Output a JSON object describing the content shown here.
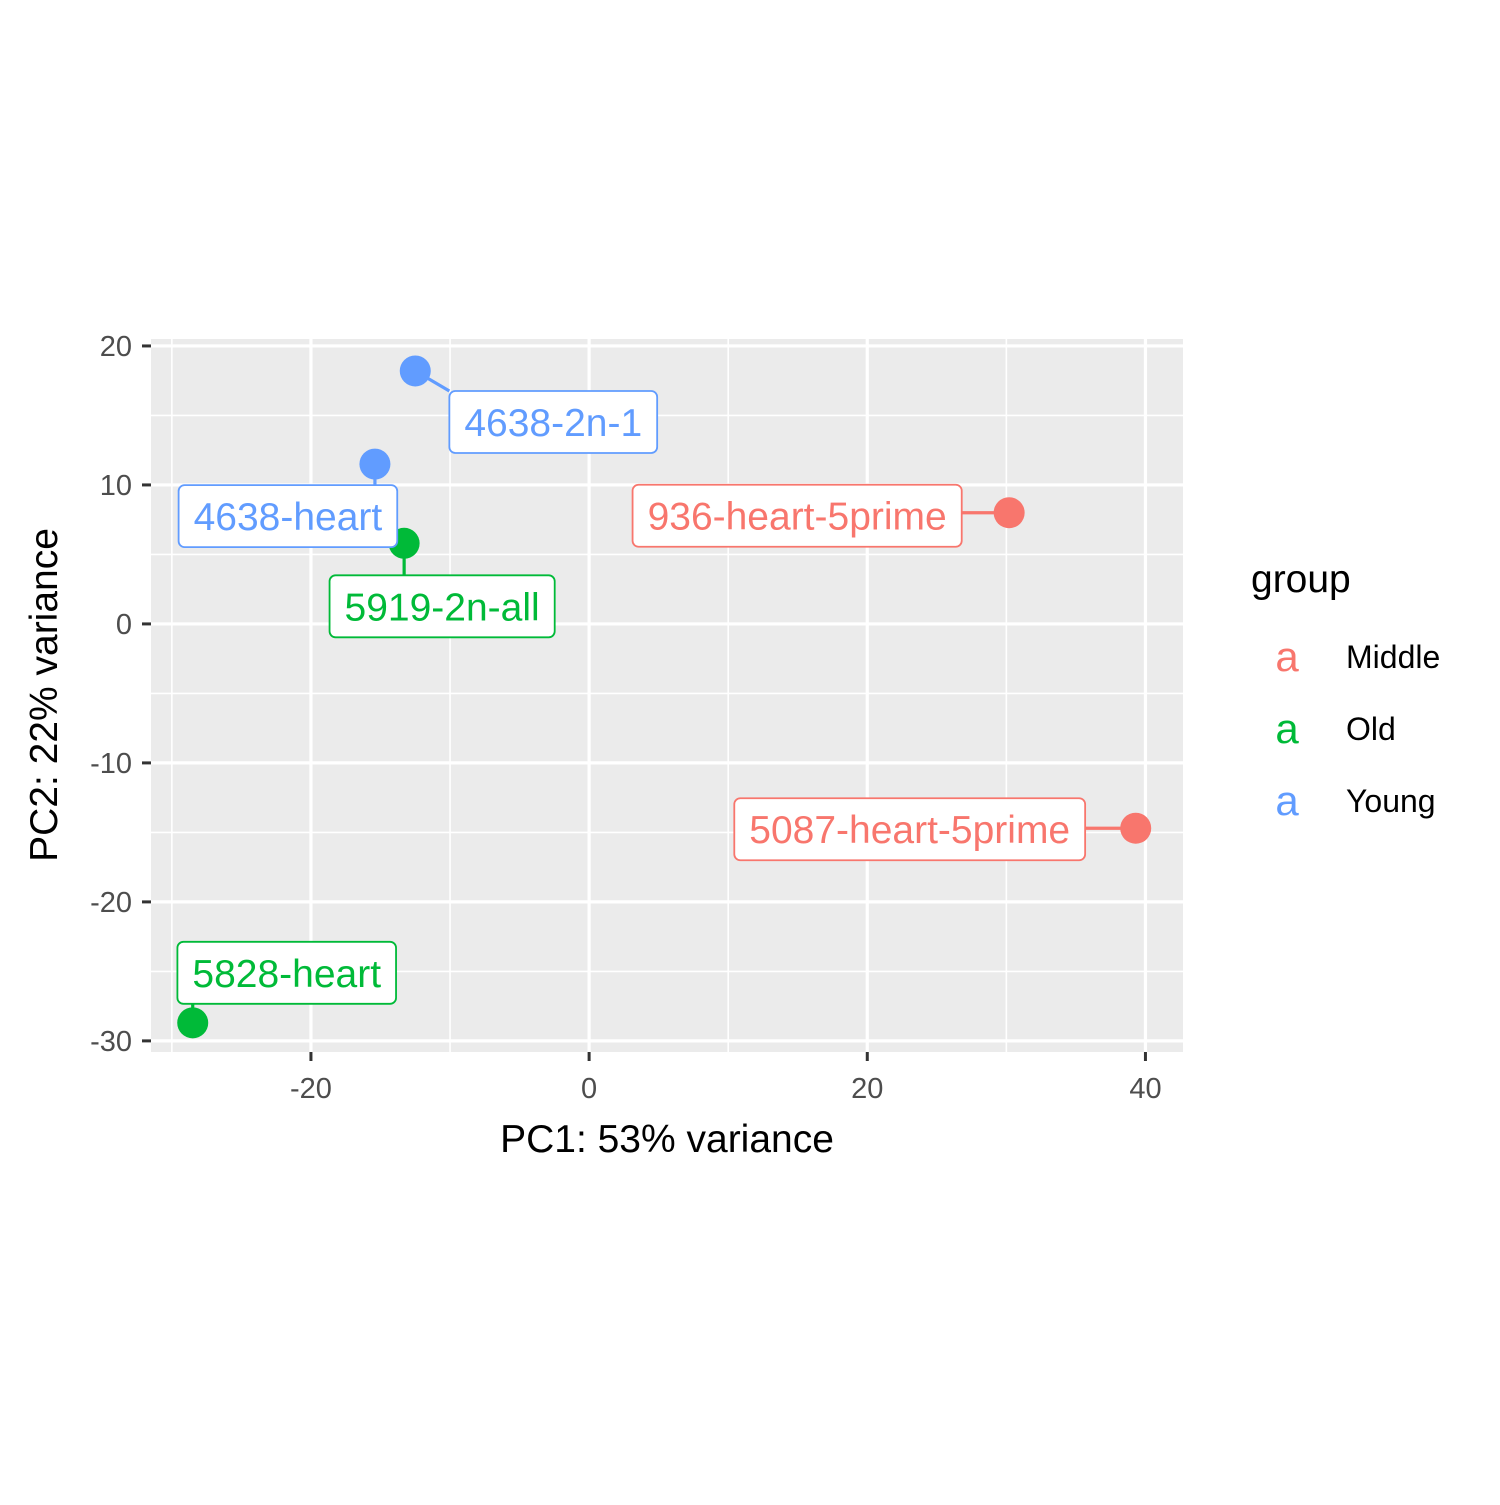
{
  "chart_data": {
    "type": "scatter",
    "title": "",
    "xlabel": "PC1: 53% variance",
    "ylabel": "PC2: 22% variance",
    "xlim": [
      -31.5,
      42.7
    ],
    "ylim": [
      -30.8,
      20.5
    ],
    "x_ticks": [
      -20,
      0,
      20,
      40
    ],
    "x_tick_labels": [
      "-20",
      "0",
      "20",
      "40"
    ],
    "y_ticks": [
      -30,
      -20,
      -10,
      0,
      10,
      20
    ],
    "y_tick_labels": [
      "-30",
      "-20",
      "-10",
      "0",
      "10",
      "20"
    ],
    "grid": true,
    "legend": {
      "title": "group",
      "position": "right",
      "key_glyph": "a",
      "entries": [
        {
          "name": "Middle",
          "color": "#F8766D"
        },
        {
          "name": "Old",
          "color": "#00BA38"
        },
        {
          "name": "Young",
          "color": "#619CFF"
        }
      ]
    },
    "points": [
      {
        "label": "4638-2n-1",
        "group": "Young",
        "x": -12.5,
        "y": 18.2
      },
      {
        "label": "4638-heart",
        "group": "Young",
        "x": -15.4,
        "y": 11.5
      },
      {
        "label": "5919-2n-all",
        "group": "Old",
        "x": -13.3,
        "y": 5.8
      },
      {
        "label": "5828-heart",
        "group": "Old",
        "x": -28.5,
        "y": -28.7
      },
      {
        "label": "936-heart-5prime",
        "group": "Middle",
        "x": 30.2,
        "y": 8.0
      },
      {
        "label": "5087-heart-5prime",
        "group": "Middle",
        "x": 39.3,
        "y": -14.7
      }
    ]
  }
}
